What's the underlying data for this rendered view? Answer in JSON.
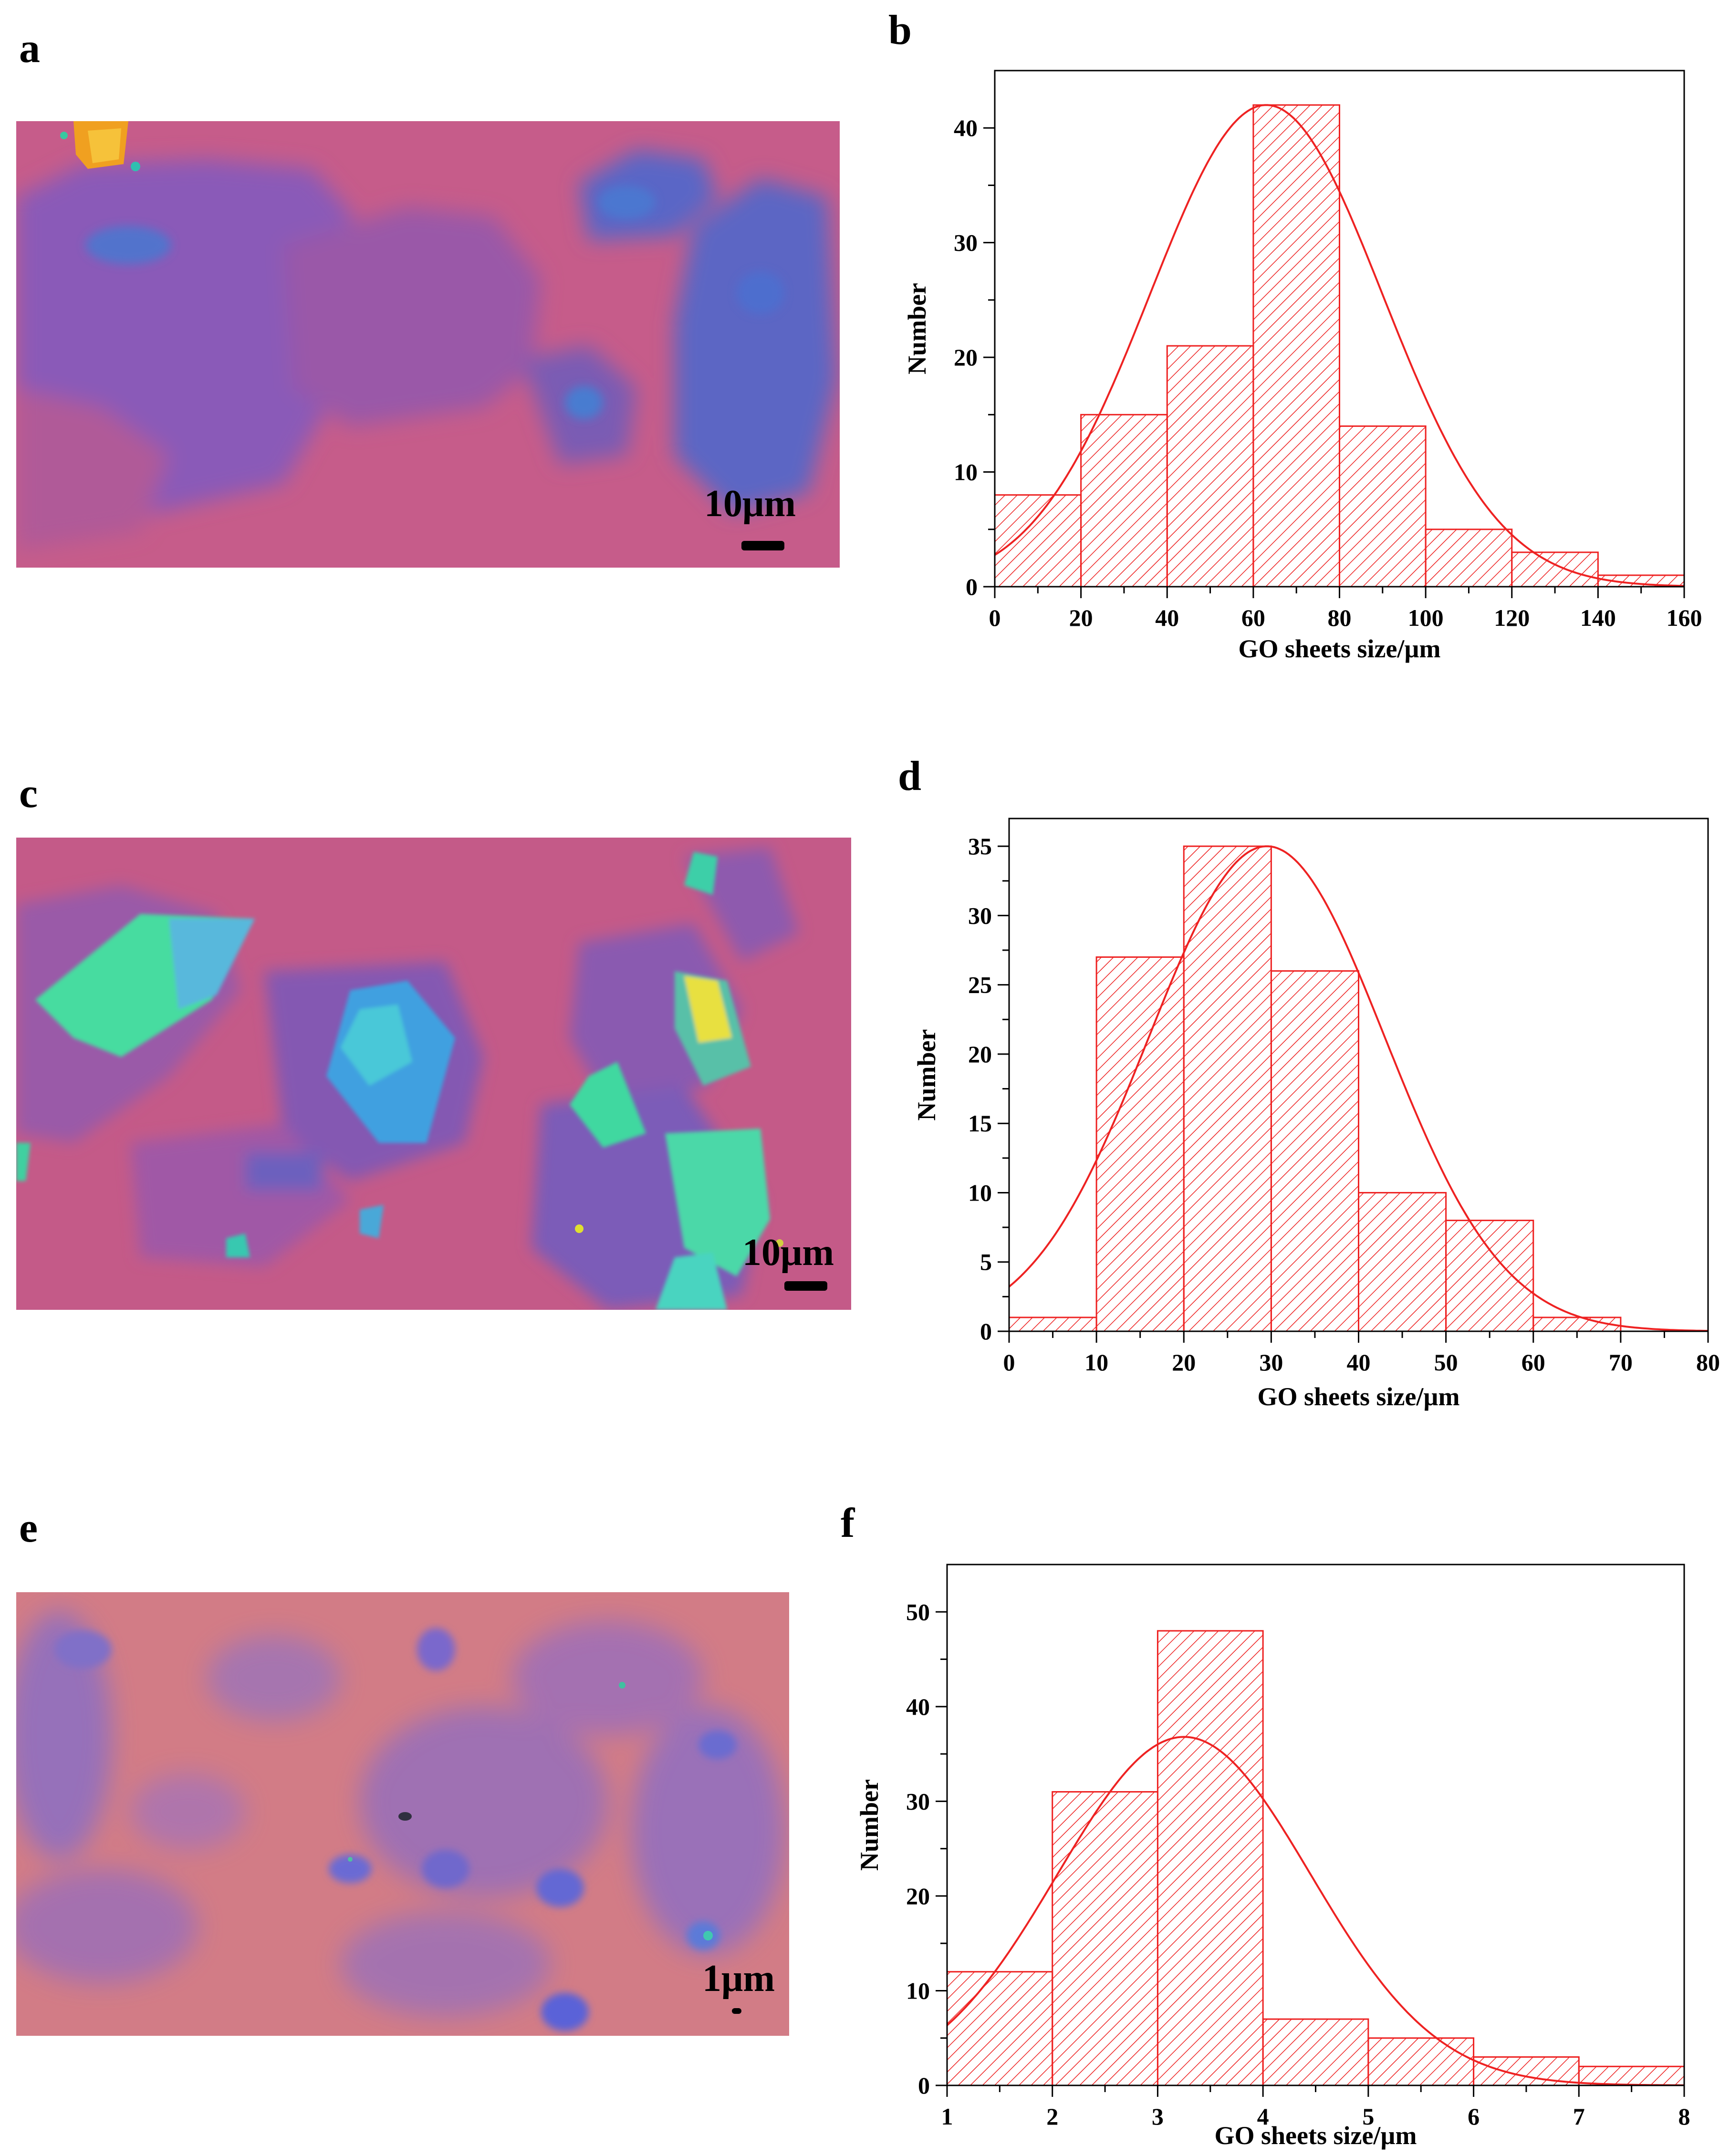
{
  "colors": {
    "bar": "#ee2222",
    "fit": "#ee2222",
    "axis": "#000000"
  },
  "panels": {
    "a": {
      "label": "a",
      "scale_label": "10μm"
    },
    "b": {
      "label": "b"
    },
    "c": {
      "label": "c",
      "scale_label": "10μm"
    },
    "d": {
      "label": "d"
    },
    "e": {
      "label": "e",
      "scale_label": "1μm"
    },
    "f": {
      "label": "f"
    }
  },
  "chart_data": [
    {
      "panel": "b",
      "type": "bar",
      "subtype": "histogram",
      "title": "",
      "xlabel": "GO sheets size/µm",
      "ylabel": "Number",
      "xlim": [
        0,
        160
      ],
      "ylim": [
        0,
        45
      ],
      "xticks": [
        0,
        20,
        40,
        60,
        80,
        100,
        120,
        140,
        160
      ],
      "yticks": [
        0,
        10,
        20,
        30,
        40
      ],
      "bins": [
        [
          0,
          20
        ],
        [
          20,
          40
        ],
        [
          40,
          60
        ],
        [
          60,
          80
        ],
        [
          80,
          100
        ],
        [
          100,
          120
        ],
        [
          120,
          140
        ],
        [
          140,
          160
        ]
      ],
      "values": [
        8,
        15,
        21,
        42,
        14,
        5,
        3,
        1
      ],
      "fit": {
        "type": "gaussian",
        "mean": 63,
        "sigma": 27,
        "peak": 42
      }
    },
    {
      "panel": "d",
      "type": "bar",
      "subtype": "histogram",
      "title": "",
      "xlabel": "GO sheets size/µm",
      "ylabel": "Number",
      "xlim": [
        0,
        80
      ],
      "ylim": [
        0,
        37
      ],
      "xticks": [
        0,
        10,
        20,
        30,
        40,
        50,
        60,
        70,
        80
      ],
      "yticks": [
        0,
        5,
        10,
        15,
        20,
        25,
        30,
        35
      ],
      "bins": [
        [
          0,
          10
        ],
        [
          10,
          20
        ],
        [
          20,
          30
        ],
        [
          30,
          40
        ],
        [
          40,
          50
        ],
        [
          50,
          60
        ],
        [
          60,
          70
        ]
      ],
      "values": [
        1,
        27,
        35,
        26,
        10,
        8,
        1
      ],
      "fit": {
        "type": "gaussian",
        "mean": 29.5,
        "sigma": 13.5,
        "peak": 35
      }
    },
    {
      "panel": "f",
      "type": "bar",
      "subtype": "histogram",
      "title": "",
      "xlabel": "GO sheets size/µm",
      "ylabel": "Number",
      "xlim": [
        1,
        8
      ],
      "ylim": [
        0,
        55
      ],
      "xticks": [
        1,
        2,
        3,
        4,
        5,
        6,
        7,
        8
      ],
      "yticks": [
        0,
        10,
        20,
        30,
        40,
        50
      ],
      "bins": [
        [
          1,
          2
        ],
        [
          2,
          3
        ],
        [
          3,
          4
        ],
        [
          4,
          5
        ],
        [
          5,
          6
        ],
        [
          6,
          7
        ],
        [
          7,
          8
        ]
      ],
      "values": [
        12,
        31,
        48,
        7,
        5,
        3,
        2
      ],
      "fit": {
        "type": "gaussian",
        "mean": 3.25,
        "sigma": 1.2,
        "peak": 36.8
      }
    }
  ]
}
